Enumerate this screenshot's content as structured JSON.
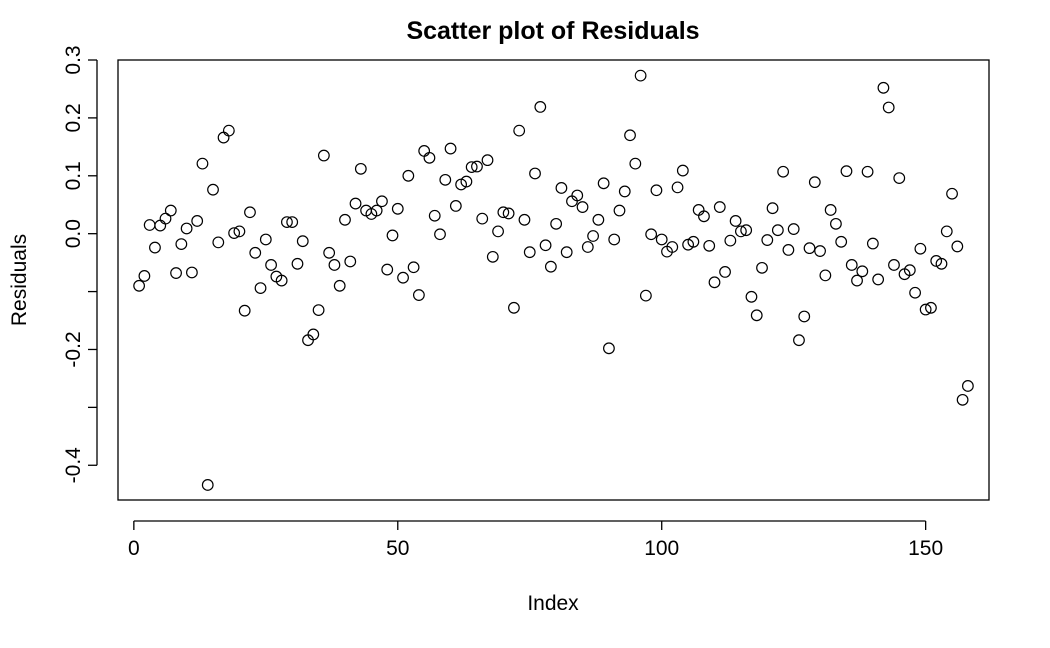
{
  "chart_data": {
    "type": "scatter",
    "title": "Scatter plot of Residuals",
    "xlabel": "Index",
    "ylabel": "Residuals",
    "xlim": [
      -3,
      162
    ],
    "ylim": [
      -0.46,
      0.3
    ],
    "xticks": [
      0,
      50,
      100,
      150
    ],
    "xtick_labels": [
      "0",
      "50",
      "100",
      "150"
    ],
    "yticks": [
      -0.4,
      -0.3,
      -0.2,
      -0.1,
      0.0,
      0.1,
      0.2,
      0.3
    ],
    "ytick_labels": [
      "-0.4",
      "",
      "-0.2",
      "",
      "0.0",
      "0.1",
      "0.2",
      "0.3"
    ],
    "grid": false,
    "x": [
      1,
      2,
      3,
      4,
      5,
      6,
      7,
      8,
      9,
      10,
      11,
      12,
      13,
      14,
      15,
      16,
      17,
      18,
      19,
      20,
      21,
      22,
      23,
      24,
      25,
      26,
      27,
      28,
      29,
      30,
      31,
      32,
      33,
      34,
      35,
      36,
      37,
      38,
      39,
      40,
      41,
      42,
      43,
      44,
      45,
      46,
      47,
      48,
      49,
      50,
      51,
      52,
      53,
      54,
      55,
      56,
      57,
      58,
      59,
      60,
      61,
      62,
      63,
      64,
      65,
      66,
      67,
      68,
      69,
      70,
      71,
      72,
      73,
      74,
      75,
      76,
      77,
      78,
      79,
      80,
      81,
      82,
      83,
      84,
      85,
      86,
      87,
      88,
      89,
      90,
      91,
      92,
      93,
      94,
      95,
      96,
      97,
      98,
      99,
      100,
      101,
      102,
      103,
      104,
      105,
      106,
      107,
      108,
      109,
      110,
      111,
      112,
      113,
      114,
      115,
      116,
      117,
      118,
      119,
      120,
      121,
      122,
      123,
      124,
      125,
      126,
      127,
      128,
      129,
      130,
      131,
      132,
      133,
      134,
      135,
      136,
      137,
      138,
      139,
      140,
      141,
      142,
      143,
      144,
      145,
      146,
      147,
      148,
      149,
      150,
      151,
      152,
      153,
      154,
      155,
      156,
      157,
      158
    ],
    "y": [
      -0.09,
      -0.073,
      0.015,
      -0.024,
      0.014,
      0.026,
      0.04,
      -0.068,
      -0.018,
      0.009,
      -0.067,
      0.022,
      0.121,
      -0.434,
      0.076,
      -0.015,
      0.166,
      0.178,
      0.001,
      0.004,
      -0.133,
      0.037,
      -0.033,
      -0.094,
      -0.01,
      -0.054,
      -0.074,
      -0.081,
      0.02,
      0.02,
      -0.052,
      -0.013,
      -0.184,
      -0.174,
      -0.132,
      0.135,
      -0.033,
      -0.054,
      -0.09,
      0.024,
      -0.048,
      0.052,
      0.112,
      0.04,
      0.034,
      0.04,
      0.056,
      -0.062,
      -0.003,
      0.043,
      -0.076,
      0.1,
      -0.058,
      -0.106,
      0.143,
      0.131,
      0.031,
      -0.001,
      0.093,
      0.147,
      0.048,
      0.085,
      0.09,
      0.115,
      0.116,
      0.026,
      0.127,
      -0.04,
      0.004,
      0.037,
      0.035,
      -0.128,
      0.178,
      0.024,
      -0.032,
      0.104,
      0.219,
      -0.02,
      -0.057,
      0.017,
      0.079,
      -0.032,
      0.056,
      0.066,
      0.046,
      -0.023,
      -0.004,
      0.024,
      0.087,
      -0.198,
      -0.01,
      0.04,
      0.073,
      0.17,
      0.121,
      0.273,
      -0.107,
      -0.001,
      0.075,
      -0.01,
      -0.031,
      -0.023,
      0.08,
      0.109,
      -0.019,
      -0.014,
      0.041,
      0.03,
      -0.021,
      -0.084,
      0.046,
      -0.066,
      -0.012,
      0.022,
      0.004,
      0.006,
      -0.109,
      -0.141,
      -0.059,
      -0.011,
      0.044,
      0.006,
      0.107,
      -0.028,
      0.008,
      -0.184,
      -0.143,
      -0.025,
      0.089,
      -0.03,
      -0.072,
      0.041,
      0.017,
      -0.014,
      0.108,
      -0.054,
      -0.081,
      -0.065,
      0.107,
      -0.017,
      -0.079,
      0.252,
      0.218,
      -0.054,
      0.096,
      -0.07,
      -0.063,
      -0.102,
      -0.026,
      -0.131,
      -0.128,
      -0.047,
      -0.052,
      0.004,
      0.069,
      -0.022,
      -0.287,
      -0.263
    ]
  }
}
